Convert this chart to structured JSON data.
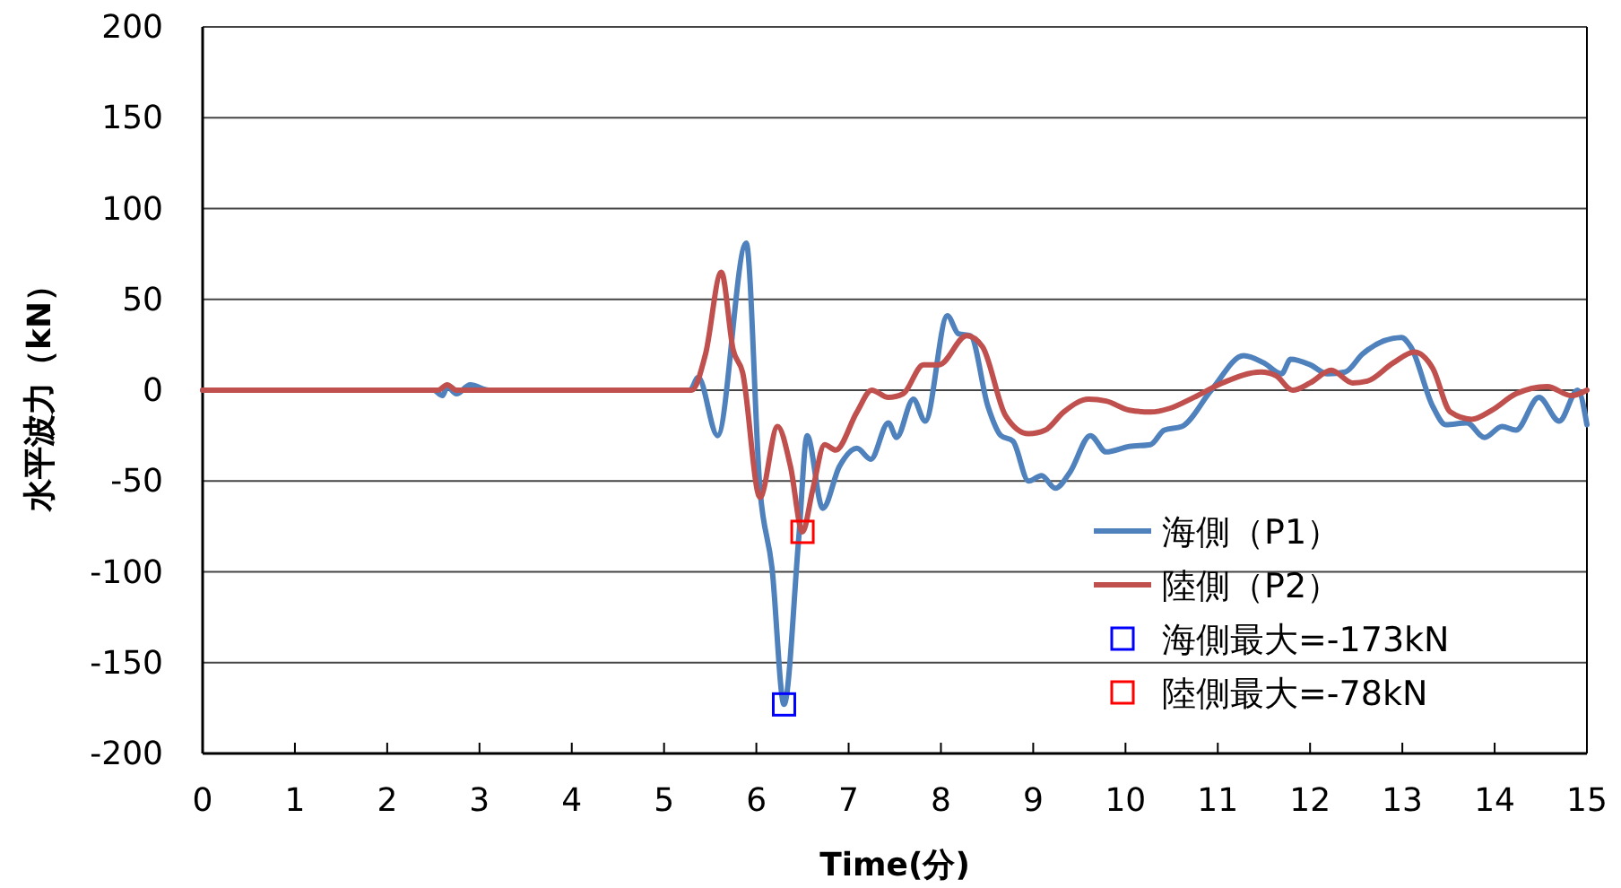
{
  "chart_data": {
    "type": "line",
    "xlabel": "Time(分)",
    "ylabel": "水平波力（kN）",
    "xlim": [
      0,
      15
    ],
    "ylim": [
      -200,
      200
    ],
    "xticks": [
      0,
      1,
      2,
      3,
      4,
      5,
      6,
      7,
      8,
      9,
      10,
      11,
      12,
      13,
      14,
      15
    ],
    "yticks": [
      -200,
      -150,
      -100,
      -50,
      0,
      50,
      100,
      150,
      200
    ],
    "grid": "y",
    "legend": "bottom right",
    "series": [
      {
        "name": "海側（P1）",
        "color": "#4f81bd",
        "x": [
          0,
          2.5,
          2.6,
          2.65,
          2.75,
          2.9,
          3.1,
          5.28,
          5.37,
          5.58,
          5.89,
          6.04,
          6.17,
          6.3,
          6.46,
          6.55,
          6.72,
          6.9,
          7.09,
          7.24,
          7.43,
          7.52,
          7.7,
          7.83,
          8.07,
          8.19,
          8.32,
          8.51,
          8.65,
          8.78,
          8.95,
          9.09,
          9.24,
          9.4,
          9.62,
          9.79,
          10.04,
          10.27,
          10.42,
          10.61,
          10.93,
          11.28,
          11.5,
          11.69,
          11.79,
          12.0,
          12.19,
          12.38,
          12.57,
          12.99,
          13.09,
          13.33,
          13.47,
          13.7,
          13.89,
          14.08,
          14.23,
          14.48,
          14.7,
          14.9,
          15.0
        ],
        "values": [
          0,
          0,
          -3,
          2,
          -2,
          3,
          0,
          0,
          7,
          -25,
          81,
          -55,
          -98,
          -173,
          -81,
          -25,
          -65,
          -42,
          -32,
          -38,
          -18,
          -26,
          -5,
          -17,
          41,
          31,
          30,
          -9,
          -25,
          -28,
          -50,
          -47,
          -54,
          -45,
          -25,
          -34,
          -31,
          -30,
          -22,
          -20,
          0,
          19,
          15,
          9,
          17,
          14,
          9,
          10,
          20,
          29,
          24,
          -9,
          -19,
          -18,
          -26,
          -20,
          -22,
          -4,
          -17,
          0,
          -19
        ]
      },
      {
        "name": "陸側（P2）",
        "color": "#c0504d",
        "x": [
          0,
          2.55,
          2.65,
          2.75,
          5.3,
          5.45,
          5.62,
          5.75,
          5.85,
          6.04,
          6.23,
          6.37,
          6.5,
          6.61,
          6.74,
          6.86,
          7.09,
          7.25,
          7.43,
          7.59,
          7.81,
          7.98,
          8.28,
          8.45,
          8.7,
          8.95,
          9.13,
          9.33,
          9.6,
          9.79,
          10.04,
          10.27,
          10.48,
          10.74,
          11.05,
          11.47,
          11.63,
          11.81,
          12.0,
          12.23,
          12.46,
          12.62,
          12.9,
          13.13,
          13.33,
          13.52,
          13.75,
          13.97,
          14.23,
          14.57,
          14.83,
          15.0
        ],
        "values": [
          0,
          0,
          3,
          0,
          0,
          20,
          65,
          22,
          10,
          -59,
          -20,
          -42,
          -78,
          -55,
          -30,
          -33,
          -12,
          0,
          -4,
          -2,
          14,
          14,
          30,
          24,
          -14,
          -24,
          -22,
          -12,
          -5,
          -6,
          -11,
          -12,
          -10,
          -4,
          4,
          10,
          8,
          0,
          4,
          11,
          4,
          5,
          15,
          21,
          12,
          -12,
          -16,
          -11,
          -2,
          2,
          -3,
          0
        ]
      },
      {
        "name": "海側最大=-173kN",
        "color": "#0000ff",
        "type": "scatter",
        "marker": "square",
        "x": [
          6.3
        ],
        "values": [
          -173
        ]
      },
      {
        "name": "陸側最大=-78kN",
        "color": "#ff0000",
        "type": "scatter",
        "marker": "square",
        "x": [
          6.5
        ],
        "values": [
          -78
        ]
      }
    ]
  }
}
